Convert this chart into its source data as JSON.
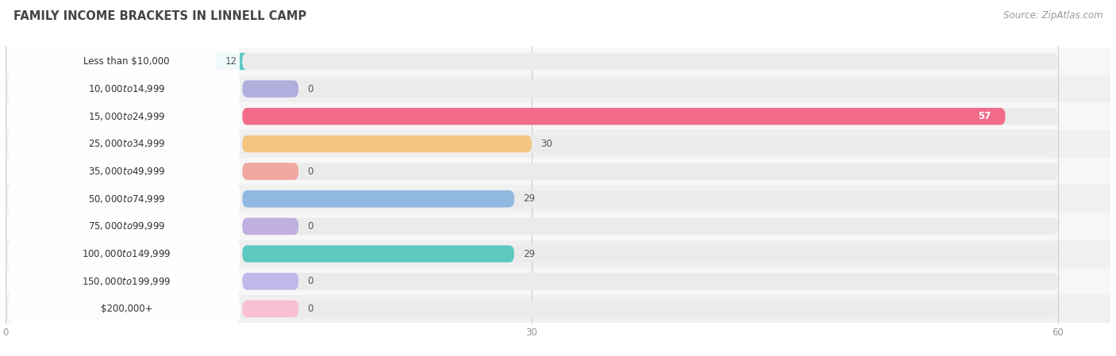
{
  "title": "FAMILY INCOME BRACKETS IN LINNELL CAMP",
  "source": "Source: ZipAtlas.com",
  "categories": [
    "Less than $10,000",
    "$10,000 to $14,999",
    "$15,000 to $24,999",
    "$25,000 to $34,999",
    "$35,000 to $49,999",
    "$50,000 to $74,999",
    "$75,000 to $99,999",
    "$100,000 to $149,999",
    "$150,000 to $199,999",
    "$200,000+"
  ],
  "values": [
    12,
    0,
    57,
    30,
    0,
    29,
    0,
    29,
    0,
    0
  ],
  "bar_colors": [
    "#5ec8c8",
    "#b0aedd",
    "#f26b8a",
    "#f5c47e",
    "#f0a8a0",
    "#90b8e0",
    "#c0b0e0",
    "#5ec8c0",
    "#c0b8e8",
    "#f8c0d0"
  ],
  "xlim_data": 60,
  "xlim_display": 63,
  "xticks": [
    0,
    30,
    60
  ],
  "background_color": "#ffffff",
  "bar_background_color": "#ebebeb",
  "row_background_colors": [
    "#f7f7f7",
    "#f0f0f0"
  ],
  "title_fontsize": 10.5,
  "source_fontsize": 8.5,
  "label_fontsize": 8.5,
  "value_fontsize": 8.5,
  "label_bg_color": "#ffffff",
  "value_57_color": "#ffffff",
  "value_other_color": "#555555"
}
